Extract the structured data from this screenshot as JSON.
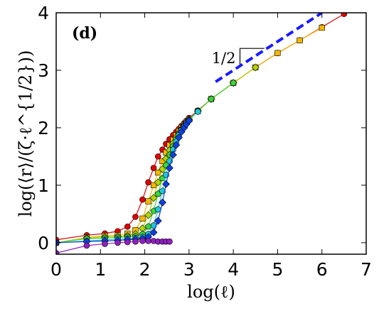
{
  "chart_data": {
    "type": "line",
    "panel_label": "(d)",
    "xlabel": "log(ℓ)",
    "ylabel": "log(⟨r⟩/(ζ·ℓ^{1/2}))",
    "xlim": [
      0,
      7
    ],
    "ylim": [
      -0.2,
      4
    ],
    "xticks": [
      "0",
      "1",
      "2",
      "3",
      "4",
      "5",
      "6",
      "7"
    ],
    "yticks": [
      "0",
      "1",
      "2",
      "3",
      "4"
    ],
    "slope_label": "1/2",
    "colors": {
      "red": "#e00000",
      "orange": "#f5b800",
      "yellowgreen": "#b4d600",
      "green": "#3ad63a",
      "cyan": "#20c8d8",
      "blue": "#1040e0",
      "purple": "#9020c0",
      "guide": "#1a1aff"
    },
    "guide_line": {
      "x": [
        3.6,
        6.0
      ],
      "y": [
        2.8,
        4.0
      ]
    },
    "series": [
      {
        "color": "red",
        "marker": "circle",
        "x": [
          0.0,
          0.69,
          1.1,
          1.39,
          1.61,
          1.79,
          1.95,
          2.08,
          2.2,
          2.3,
          2.4,
          2.48,
          2.56,
          2.64,
          2.71,
          2.77,
          2.83,
          2.89,
          2.94,
          3.0,
          3.2,
          3.5,
          4.0,
          4.5,
          5.0,
          5.5,
          6.0,
          6.5
        ],
        "y": [
          0.05,
          0.13,
          0.16,
          0.2,
          0.28,
          0.45,
          0.75,
          1.05,
          1.3,
          1.5,
          1.62,
          1.72,
          1.8,
          1.87,
          1.93,
          1.98,
          2.03,
          2.08,
          2.12,
          2.17,
          2.3,
          2.5,
          2.78,
          3.05,
          3.3,
          3.52,
          3.75,
          3.98
        ]
      },
      {
        "color": "orange",
        "marker": "square",
        "x": [
          0.0,
          0.69,
          1.1,
          1.39,
          1.61,
          1.79,
          1.95,
          2.08,
          2.2,
          2.3,
          2.4,
          2.48,
          2.56,
          2.64,
          2.71,
          2.77,
          2.83,
          2.89,
          2.94,
          3.0,
          3.2,
          3.5,
          4.0,
          4.5,
          5.0,
          5.5,
          6.0
        ],
        "y": [
          0.0,
          0.09,
          0.12,
          0.13,
          0.16,
          0.22,
          0.42,
          0.72,
          1.0,
          1.22,
          1.42,
          1.57,
          1.7,
          1.79,
          1.87,
          1.94,
          2.0,
          2.05,
          2.1,
          2.15,
          2.29,
          2.5,
          2.78,
          3.05,
          3.3,
          3.52,
          3.74
        ]
      },
      {
        "color": "yellowgreen",
        "marker": "diamond",
        "x": [
          0.0,
          0.69,
          1.1,
          1.39,
          1.61,
          1.79,
          1.95,
          2.08,
          2.2,
          2.3,
          2.4,
          2.48,
          2.56,
          2.64,
          2.71,
          2.77,
          2.83,
          2.89,
          2.94,
          3.0,
          3.2,
          3.5,
          4.0,
          4.5
        ],
        "y": [
          0.0,
          0.08,
          0.1,
          0.11,
          0.12,
          0.15,
          0.25,
          0.48,
          0.78,
          1.05,
          1.28,
          1.46,
          1.61,
          1.73,
          1.83,
          1.91,
          1.98,
          2.04,
          2.09,
          2.14,
          2.29,
          2.5,
          2.78,
          3.05
        ]
      },
      {
        "color": "green",
        "marker": "pentagon",
        "x": [
          0.0,
          0.69,
          1.1,
          1.39,
          1.61,
          1.79,
          1.95,
          2.08,
          2.2,
          2.3,
          2.4,
          2.48,
          2.56,
          2.64,
          2.71,
          2.77,
          2.83,
          2.89,
          2.94,
          3.0,
          3.2,
          3.5,
          4.0
        ],
        "y": [
          0.0,
          0.07,
          0.08,
          0.09,
          0.1,
          0.11,
          0.15,
          0.28,
          0.55,
          0.85,
          1.12,
          1.35,
          1.53,
          1.68,
          1.8,
          1.89,
          1.97,
          2.03,
          2.09,
          2.14,
          2.29,
          2.5,
          2.78
        ]
      },
      {
        "color": "cyan",
        "marker": "hexagon",
        "x": [
          0.0,
          0.69,
          1.1,
          1.39,
          1.61,
          1.79,
          1.95,
          2.08,
          2.2,
          2.3,
          2.4,
          2.48,
          2.56,
          2.64,
          2.71,
          2.77,
          2.83,
          2.89,
          2.94,
          3.0,
          3.2
        ],
        "y": [
          0.0,
          0.03,
          0.05,
          0.06,
          0.07,
          0.08,
          0.1,
          0.15,
          0.3,
          0.58,
          0.9,
          1.18,
          1.42,
          1.62,
          1.76,
          1.87,
          1.96,
          2.02,
          2.08,
          2.13,
          2.28
        ]
      },
      {
        "color": "blue",
        "marker": "diamond",
        "x": [
          0.0,
          0.69,
          1.1,
          1.39,
          1.61,
          1.79,
          1.95,
          2.08,
          2.2,
          2.3,
          2.4,
          2.48,
          2.56,
          2.64,
          2.71,
          2.77,
          2.83,
          2.89,
          2.94,
          3.0
        ],
        "y": [
          0.0,
          0.02,
          0.03,
          0.04,
          0.05,
          0.06,
          0.07,
          0.1,
          0.18,
          0.38,
          0.7,
          1.02,
          1.3,
          1.53,
          1.7,
          1.83,
          1.93,
          2.0,
          2.06,
          2.12
        ]
      },
      {
        "color": "purple",
        "marker": "circle",
        "x": [
          0.0,
          0.69,
          1.1,
          1.39,
          1.61,
          1.79,
          1.95,
          2.08,
          2.2,
          2.3,
          2.4,
          2.48,
          2.56
        ],
        "y": [
          -0.18,
          -0.05,
          -0.02,
          0.0,
          0.01,
          0.02,
          0.03,
          0.03,
          0.03,
          0.02,
          0.02,
          0.02,
          0.02
        ]
      }
    ]
  }
}
